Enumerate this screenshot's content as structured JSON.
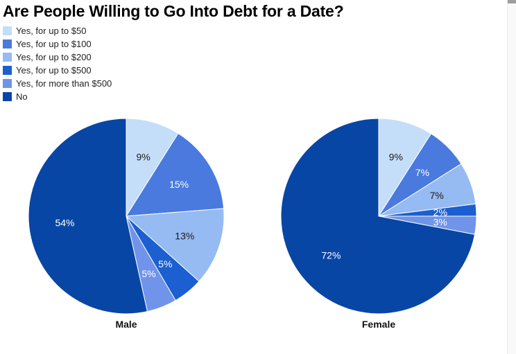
{
  "title": "Are People Willing to Go Into Debt for a Date?",
  "legend": {
    "items": [
      {
        "label": "Yes, for up to $50",
        "color": "#c4def9"
      },
      {
        "label": "Yes, for up to $100",
        "color": "#4a7ade"
      },
      {
        "label": "Yes, for up to $200",
        "color": "#96baf2"
      },
      {
        "label": "Yes, for up to $500",
        "color": "#1b5fd0"
      },
      {
        "label": "Yes, for more than $500",
        "color": "#7094ea"
      },
      {
        "label": "No",
        "color": "#0846a6"
      }
    ]
  },
  "chart_data": [
    {
      "type": "pie",
      "title": "Male",
      "categories": [
        "Yes, for up to $50",
        "Yes, for up to $100",
        "Yes, for up to $200",
        "Yes, for up to $500",
        "Yes, for more than $500",
        "No"
      ],
      "values": [
        9,
        15,
        13,
        5,
        5,
        54
      ],
      "slice_labels": [
        "9%",
        "15%",
        "13%",
        "5%",
        "5%",
        "54%"
      ],
      "start_angle_deg": 0,
      "direction": "clockwise",
      "legend_position": "top-left"
    },
    {
      "type": "pie",
      "title": "Female",
      "categories": [
        "Yes, for up to $50",
        "Yes, for up to $100",
        "Yes, for up to $200",
        "Yes, for up to $500",
        "Yes, for more than $500",
        "No"
      ],
      "values": [
        9,
        7,
        7,
        2,
        3,
        72
      ],
      "slice_labels": [
        "9%",
        "7%",
        "7%",
        "2%",
        "3%",
        "72%"
      ],
      "start_angle_deg": 0,
      "direction": "clockwise",
      "legend_position": "top-left"
    }
  ],
  "style": {
    "slice_colors": [
      "#c4def9",
      "#4a7ade",
      "#96baf2",
      "#1b5fd0",
      "#7094ea",
      "#0846a6"
    ],
    "slice_label_colors": [
      "#1a1a1a",
      "#ffffff",
      "#1a1a1a",
      "#ffffff",
      "#ffffff",
      "#ffffff"
    ],
    "slice_border_color": "#ffffff"
  }
}
